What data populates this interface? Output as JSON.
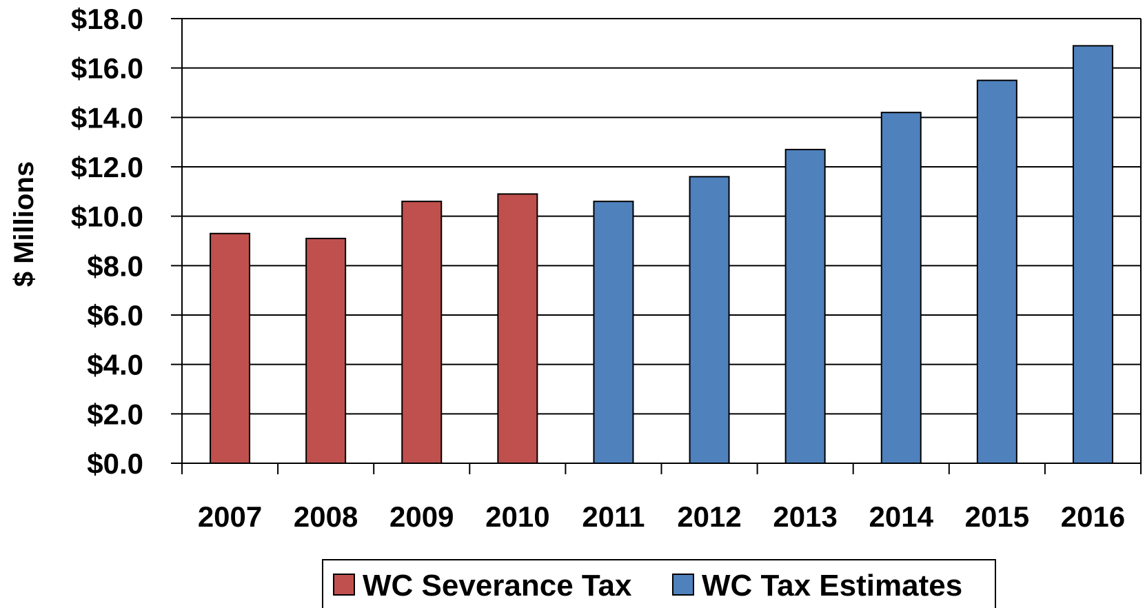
{
  "chart_data": {
    "type": "bar",
    "title": "",
    "xlabel": "",
    "ylabel": "$ Millions",
    "ylim": [
      0,
      18
    ],
    "y_ticks": [
      "$0.0",
      "$2.0",
      "$4.0",
      "$6.0",
      "$8.0",
      "$10.0",
      "$12.0",
      "$14.0",
      "$16.0",
      "$18.0"
    ],
    "grid": true,
    "legend_position": "bottom",
    "categories": [
      "2007",
      "2008",
      "2009",
      "2010",
      "2011",
      "2012",
      "2013",
      "2014",
      "2015",
      "2016"
    ],
    "series": [
      {
        "name": "WC Severance Tax",
        "color": "#C0504D",
        "values": [
          9.3,
          9.1,
          10.6,
          10.9,
          null,
          null,
          null,
          null,
          null,
          null
        ]
      },
      {
        "name": "WC Tax Estimates",
        "color": "#4F81BD",
        "values": [
          null,
          null,
          null,
          null,
          10.6,
          11.6,
          12.7,
          14.2,
          15.5,
          16.9
        ]
      }
    ]
  }
}
